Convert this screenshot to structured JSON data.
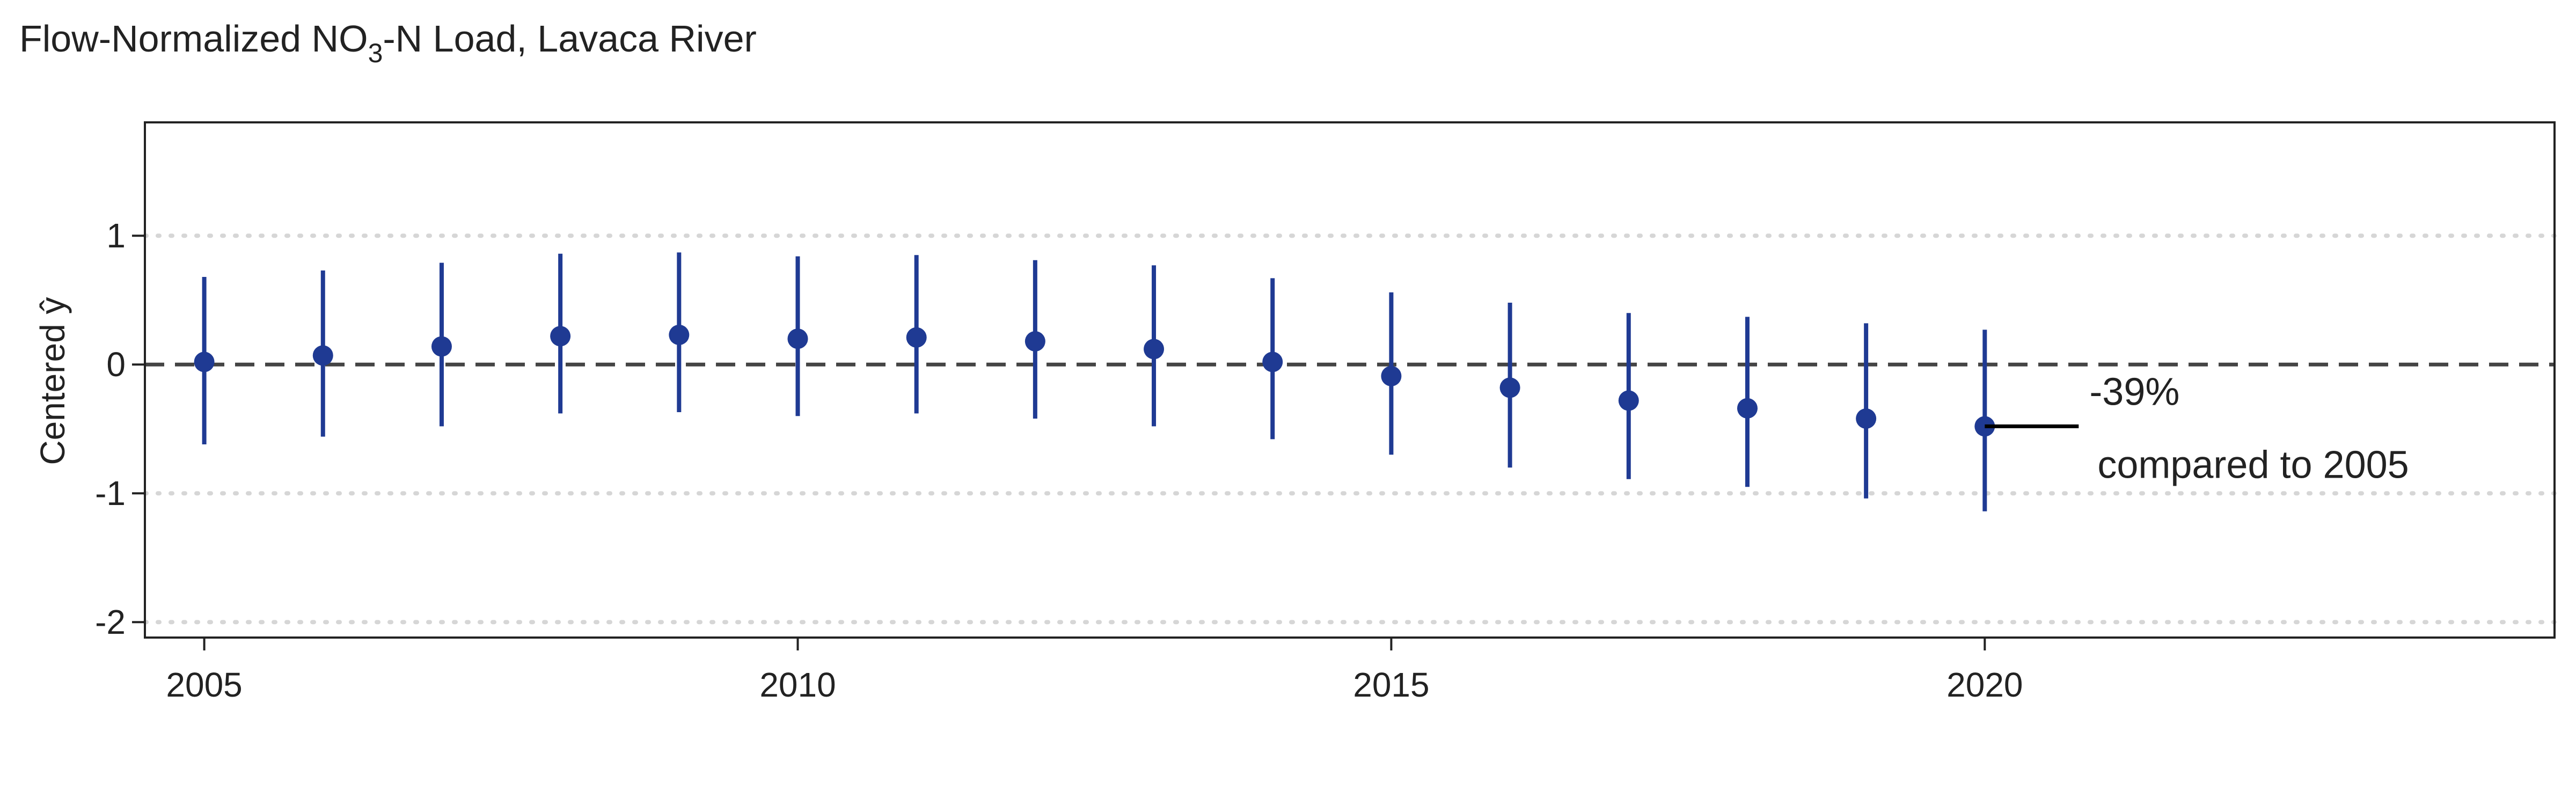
{
  "chart_data": {
    "type": "scatter",
    "title": {
      "prefix": "Flow-Normalized NO",
      "subscript": "3",
      "suffix": "-N Load, Lavaca River"
    },
    "xlabel": "",
    "ylabel": "Centered ŷ",
    "xlim": [
      2004.5,
      2024.8
    ],
    "ylim": [
      -2.12,
      1.88
    ],
    "x_ticks": [
      2005,
      2010,
      2015,
      2020
    ],
    "x_tick_labels": [
      "2005",
      "2010",
      "2015",
      "2020"
    ],
    "y_ticks": [
      -2,
      -1,
      0,
      1
    ],
    "y_tick_labels": [
      "-2",
      "-1",
      "0",
      "1"
    ],
    "horizontal_gridlines": [
      -2,
      -1,
      1
    ],
    "grid": true,
    "reference_line": {
      "y": 0,
      "style": "dashed"
    },
    "series": [
      {
        "x": [
          2005,
          2006,
          2007,
          2008,
          2009,
          2010,
          2011,
          2012,
          2013,
          2014,
          2015,
          2016,
          2017,
          2018,
          2019,
          2020
        ],
        "y": [
          0.02,
          0.07,
          0.14,
          0.22,
          0.23,
          0.2,
          0.21,
          0.18,
          0.12,
          0.02,
          -0.09,
          -0.18,
          -0.28,
          -0.34,
          -0.42,
          -0.48
        ],
        "lower": [
          -0.62,
          -0.56,
          -0.48,
          -0.38,
          -0.37,
          -0.4,
          -0.38,
          -0.42,
          -0.48,
          -0.58,
          -0.7,
          -0.8,
          -0.89,
          -0.95,
          -1.04,
          -1.14
        ],
        "upper": [
          0.68,
          0.73,
          0.79,
          0.86,
          0.87,
          0.84,
          0.85,
          0.81,
          0.77,
          0.67,
          0.56,
          0.48,
          0.4,
          0.37,
          0.32,
          0.27
        ]
      }
    ],
    "annotation": {
      "anchor_x": 2020,
      "anchor_y": -0.48,
      "text_line_1": "-39%",
      "text_line_2": "compared to 2005"
    },
    "colors": {
      "series": "#1f3a93",
      "reference_line": "#444444",
      "gridline": "#d6d6d6",
      "frame": "#222222",
      "annotation_line": "#000000"
    }
  }
}
